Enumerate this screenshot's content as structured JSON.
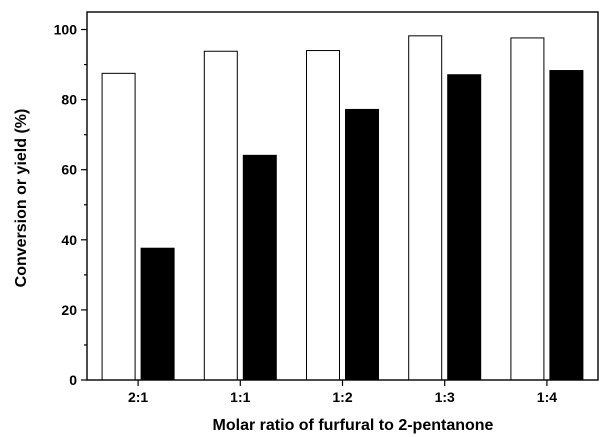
{
  "chart_data": {
    "type": "bar",
    "xlabel": "Molar ratio of furfural to 2-pentanone",
    "ylabel": "Conversion or yield (%)",
    "categories": [
      "2:1",
      "1:1",
      "1:2",
      "1:3",
      "1:4"
    ],
    "series": [
      {
        "values": [
          87.5,
          93.8,
          94.0,
          98.2,
          97.6
        ],
        "fill": "#ffffff",
        "stroke": "#000000"
      },
      {
        "values": [
          37.6,
          64.1,
          77.2,
          87.1,
          88.3
        ],
        "fill": "#000000",
        "stroke": "#000000"
      }
    ],
    "ylim": [
      0,
      105
    ],
    "yticks": [
      0,
      20,
      40,
      60,
      80,
      100
    ],
    "y_minor_step": 10,
    "grid": false,
    "legend": "none"
  }
}
